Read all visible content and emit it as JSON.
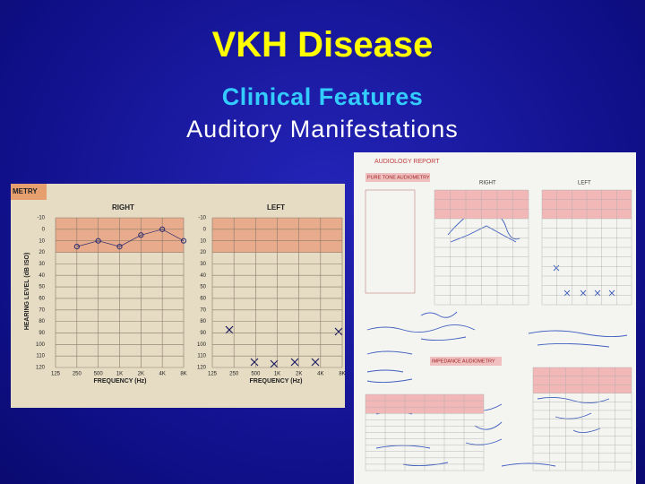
{
  "slide": {
    "title": "VKH Disease",
    "subtitle": "Clinical Features",
    "subtitle2": "Auditory Manifestations",
    "left_report": {
      "header": "METRY",
      "right_label": "RIGHT",
      "left_label": "LEFT",
      "y_axis_label": "HEARING LEVEL (dB ISO)",
      "x_axis_label": "FREQUENCY (Hz)",
      "hearing_levels": [
        -10,
        0,
        10,
        20,
        30,
        40,
        50,
        60,
        70,
        80,
        90,
        100,
        110,
        120
      ],
      "frequencies": [
        "125",
        "250",
        "500",
        "1K",
        "2K",
        "4K",
        "8K"
      ],
      "right_ear_db": [
        null,
        15,
        10,
        15,
        5,
        0,
        10
      ]
    },
    "right_report": {
      "header": "AUDIOLOGY REPORT",
      "section1": "PURE TONE AUDIOMETRY",
      "right_label": "RIGHT",
      "left_label": "LEFT",
      "section2": "IMPEDANCE AUDIOMETRY"
    }
  }
}
